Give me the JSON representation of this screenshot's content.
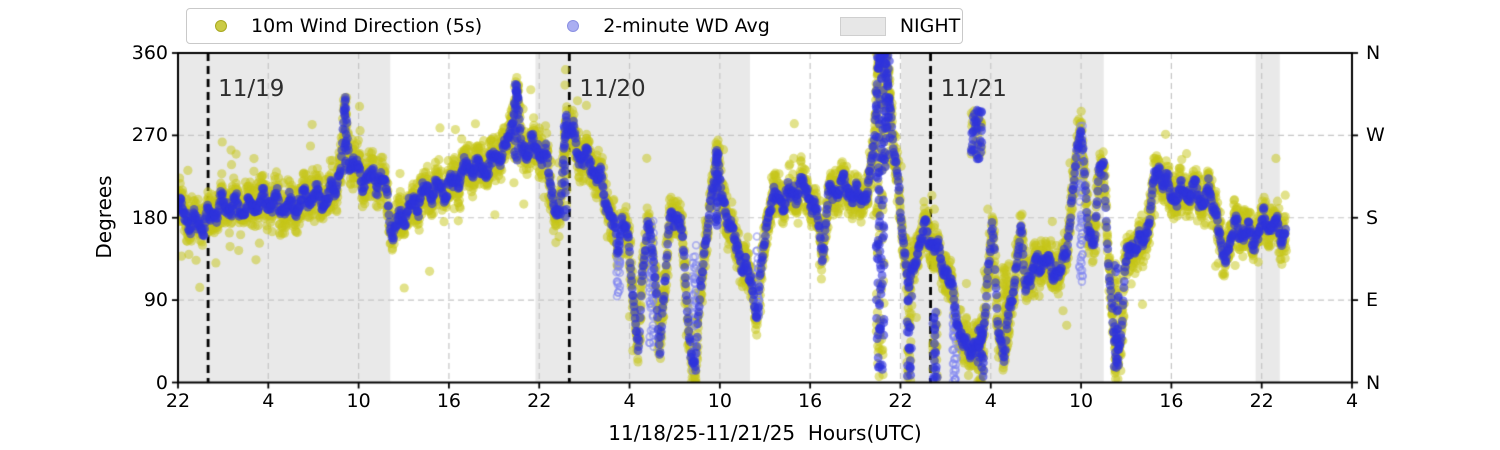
{
  "figure_title": "",
  "legend": {
    "items": [
      {
        "label": "10m Wind Direction (5s)",
        "marker": "dot",
        "fill": "#cbcb45",
        "edge": "#a8a820"
      },
      {
        "label": "2-minute WD Avg",
        "marker": "dot",
        "fill": "#aaaef2",
        "edge": "#8b90e2"
      },
      {
        "label": "NIGHT",
        "marker": "patch",
        "fill": "#e7e7e7",
        "edge": "#cfcfcf"
      }
    ]
  },
  "chart_data": {
    "type": "scatter",
    "title": "",
    "xlabel": "11/18/25-11/21/25  Hours(UTC)",
    "ylabel": "Degrees",
    "ylim": [
      0,
      360
    ],
    "grid": true,
    "legend_position": "top",
    "x_axis": {
      "unit": "hours UTC, 0 = 22:00 on 11/18/25",
      "range_hours": [
        0,
        78
      ],
      "tick_hours": [
        0,
        6,
        12,
        18,
        24,
        30,
        36,
        42,
        48,
        54,
        60,
        66,
        72,
        78
      ],
      "tick_labels": [
        "22",
        "4",
        "10",
        "16",
        "22",
        "4",
        "10",
        "16",
        "22",
        "4",
        "10",
        "16",
        "22",
        "4"
      ]
    },
    "y_axis": {
      "ticks": [
        0,
        90,
        180,
        270,
        360
      ]
    },
    "y_axis_right": {
      "labels_bottom_to_top": [
        "N",
        "E",
        "S",
        "W",
        "N"
      ]
    },
    "night_regions_hours": [
      [
        0,
        14.1
      ],
      [
        23.75,
        38.0
      ],
      [
        48.05,
        61.5
      ],
      [
        71.6,
        73.2
      ]
    ],
    "night_fill": "#e9e9e9",
    "grid_color": "#c6c6c6",
    "day_lines": [
      {
        "hour": 2,
        "label": "11/19"
      },
      {
        "hour": 26,
        "label": "11/20"
      },
      {
        "hour": 50,
        "label": "11/21"
      }
    ],
    "series": [
      {
        "name": "10m Wind Direction (5s)",
        "kind": "5s",
        "dot_color": "#c5c518",
        "alpha": 0.5,
        "step_hours": 0.012,
        "radius": 4.6
      },
      {
        "name": "2-minute WD Avg",
        "kind": "avg",
        "dot_color": "#2f34dc",
        "alpha": 0.6,
        "step_hours": 0.0333,
        "radius": 4.4,
        "light_edge_color": "#8085f0"
      }
    ],
    "data_start_hour": 0,
    "data_end_hour": 73.6,
    "jitter": {
      "wd_5s_spread_deg": 34,
      "wd_avg_spread_deg": 10,
      "outlier_rate": 0.018,
      "seed": 20251118
    },
    "wind_direction_profile_hour_deg": [
      [
        0,
        185
      ],
      [
        0.8,
        175
      ],
      [
        2.2,
        182
      ],
      [
        3.2,
        190
      ],
      [
        4.5,
        196
      ],
      [
        5.5,
        192
      ],
      [
        6.6,
        198
      ],
      [
        7.5,
        193
      ],
      [
        8.1,
        192
      ],
      [
        8.8,
        200
      ],
      [
        9.5,
        204
      ],
      [
        10.1,
        206
      ],
      [
        10.8,
        228
      ],
      [
        11.1,
        295
      ],
      [
        11.4,
        240
      ],
      [
        12.0,
        230
      ],
      [
        12.4,
        228
      ],
      [
        13.0,
        226
      ],
      [
        13.6,
        218
      ],
      [
        14.0,
        185
      ],
      [
        14.3,
        155
      ],
      [
        14.8,
        185
      ],
      [
        15.5,
        196
      ],
      [
        16.1,
        200
      ],
      [
        17.0,
        206
      ],
      [
        17.4,
        210
      ],
      [
        18.0,
        218
      ],
      [
        18.7,
        226
      ],
      [
        19.3,
        230
      ],
      [
        19.9,
        232
      ],
      [
        20.6,
        240
      ],
      [
        21.3,
        252
      ],
      [
        21.8,
        250
      ],
      [
        22.2,
        282
      ],
      [
        22.5,
        315
      ],
      [
        22.8,
        258
      ],
      [
        23.2,
        260
      ],
      [
        23.6,
        263
      ],
      [
        24.0,
        255
      ],
      [
        24.5,
        238
      ],
      [
        25.0,
        188
      ],
      [
        25.4,
        172
      ],
      [
        25.6,
        255
      ],
      [
        25.8,
        290
      ],
      [
        26.3,
        270
      ],
      [
        26.8,
        248
      ],
      [
        27.4,
        235
      ],
      [
        28.2,
        212
      ],
      [
        28.7,
        190
      ],
      [
        29.2,
        150
      ],
      [
        29.5,
        182
      ],
      [
        29.8,
        160
      ],
      [
        30.2,
        105
      ],
      [
        30.45,
        52
      ],
      [
        30.6,
        32
      ],
      [
        30.9,
        120
      ],
      [
        31.2,
        188
      ],
      [
        31.5,
        150
      ],
      [
        31.8,
        90
      ],
      [
        32.0,
        47
      ],
      [
        32.4,
        120
      ],
      [
        32.8,
        183
      ],
      [
        33.4,
        168
      ],
      [
        33.8,
        100
      ],
      [
        34.1,
        28
      ],
      [
        34.4,
        15
      ],
      [
        34.7,
        118
      ],
      [
        35.2,
        162
      ],
      [
        35.8,
        252
      ],
      [
        36.1,
        195
      ],
      [
        36.7,
        180
      ],
      [
        37.1,
        150
      ],
      [
        37.7,
        130
      ],
      [
        38.1,
        100
      ],
      [
        38.5,
        75
      ],
      [
        38.9,
        140
      ],
      [
        39.3,
        198
      ],
      [
        39.9,
        205
      ],
      [
        40.7,
        200
      ],
      [
        41.3,
        210
      ],
      [
        42.0,
        206
      ],
      [
        42.6,
        178
      ],
      [
        42.8,
        140
      ],
      [
        43.0,
        178
      ],
      [
        43.3,
        205
      ],
      [
        44.3,
        210
      ],
      [
        45.3,
        206
      ],
      [
        46.0,
        216
      ],
      [
        46.3,
        278
      ],
      [
        46.5,
        345
      ],
      [
        46.8,
        355
      ],
      [
        47.1,
        340
      ],
      [
        47.35,
        300
      ],
      [
        47.6,
        250
      ],
      [
        47.85,
        215
      ],
      [
        48.1,
        178
      ],
      [
        48.35,
        140
      ],
      [
        48.6,
        100
      ],
      [
        48.9,
        128
      ],
      [
        49.2,
        148
      ],
      [
        49.6,
        160
      ],
      [
        50.2,
        154
      ],
      [
        50.6,
        140
      ],
      [
        51.1,
        124
      ],
      [
        51.5,
        92
      ],
      [
        51.9,
        55
      ],
      [
        52.3,
        30
      ],
      [
        52.8,
        42
      ],
      [
        53.3,
        35
      ],
      [
        53.8,
        120
      ],
      [
        54.1,
        168
      ],
      [
        54.5,
        62
      ],
      [
        54.9,
        15
      ],
      [
        55.3,
        90
      ],
      [
        55.7,
        122
      ],
      [
        56.0,
        172
      ],
      [
        56.3,
        120
      ],
      [
        56.65,
        110
      ],
      [
        57.1,
        136
      ],
      [
        57.5,
        120
      ],
      [
        58.0,
        128
      ],
      [
        58.5,
        114
      ],
      [
        58.9,
        148
      ],
      [
        59.3,
        180
      ],
      [
        59.8,
        262
      ],
      [
        60.0,
        283
      ],
      [
        60.25,
        208
      ],
      [
        60.5,
        152
      ],
      [
        60.9,
        162
      ],
      [
        61.2,
        225
      ],
      [
        61.5,
        243
      ],
      [
        61.8,
        150
      ],
      [
        62.1,
        62
      ],
      [
        62.35,
        20
      ],
      [
        62.6,
        46
      ],
      [
        62.9,
        110
      ],
      [
        63.2,
        140
      ],
      [
        63.6,
        150
      ],
      [
        64.1,
        156
      ],
      [
        64.5,
        186
      ],
      [
        64.8,
        210
      ],
      [
        65.1,
        238
      ],
      [
        65.6,
        212
      ],
      [
        66.0,
        200
      ],
      [
        66.6,
        206
      ],
      [
        67.1,
        216
      ],
      [
        67.6,
        210
      ],
      [
        68.1,
        196
      ],
      [
        68.6,
        200
      ],
      [
        69.0,
        186
      ],
      [
        69.4,
        132
      ],
      [
        69.9,
        165
      ],
      [
        70.4,
        172
      ],
      [
        70.9,
        160
      ],
      [
        71.4,
        150
      ],
      [
        71.8,
        165
      ],
      [
        72.2,
        180
      ],
      [
        72.7,
        176
      ],
      [
        73.1,
        170
      ],
      [
        73.6,
        160
      ]
    ],
    "vertical_streaks": [
      {
        "hour": 11.1,
        "width": 0.15,
        "deg_min": 230,
        "deg_max": 310,
        "series": "both",
        "n": 30
      },
      {
        "hour": 22.5,
        "width": 0.3,
        "deg_min": 240,
        "deg_max": 330,
        "series": "both",
        "n": 45
      },
      {
        "hour": 25.75,
        "width": 0.2,
        "deg_min": 180,
        "deg_max": 295,
        "series": "both",
        "n": 30
      },
      {
        "hour": 29.25,
        "width": 0.25,
        "deg_min": 90,
        "deg_max": 178,
        "series": "avg-light",
        "n": 40
      },
      {
        "hour": 31.45,
        "width": 0.3,
        "deg_min": 35,
        "deg_max": 178,
        "series": "avg-light",
        "n": 50
      },
      {
        "hour": 34.3,
        "width": 0.25,
        "deg_min": 10,
        "deg_max": 150,
        "series": "avg-light",
        "n": 40
      },
      {
        "hour": 35.8,
        "width": 0.15,
        "deg_min": 170,
        "deg_max": 256,
        "series": "avg",
        "n": 25
      },
      {
        "hour": 38.5,
        "width": 0.2,
        "deg_min": 60,
        "deg_max": 160,
        "series": "avg-light",
        "n": 30
      },
      {
        "hour": 46.65,
        "width": 0.55,
        "deg_min": 0,
        "deg_max": 360,
        "series": "both",
        "n": 170
      },
      {
        "hour": 47.1,
        "width": 0.4,
        "deg_min": 235,
        "deg_max": 360,
        "series": "both",
        "n": 70
      },
      {
        "hour": 48.6,
        "width": 0.35,
        "deg_min": 0,
        "deg_max": 95,
        "series": "both",
        "n": 45
      },
      {
        "hour": 50.3,
        "width": 0.3,
        "deg_min": 0,
        "deg_max": 80,
        "series": "both",
        "n": 40
      },
      {
        "hour": 51.6,
        "width": 0.3,
        "deg_min": 0,
        "deg_max": 85,
        "series": "avg-light",
        "n": 40
      },
      {
        "hour": 53.05,
        "width": 0.7,
        "deg_min": 243,
        "deg_max": 298,
        "series": "both",
        "n": 70
      },
      {
        "hour": 53.35,
        "width": 0.4,
        "deg_min": 0,
        "deg_max": 60,
        "series": "both",
        "n": 40
      },
      {
        "hour": 55.0,
        "width": 0.5,
        "deg_min": 40,
        "deg_max": 130,
        "series": "5s",
        "n": 60
      },
      {
        "hour": 60.0,
        "width": 0.25,
        "deg_min": 105,
        "deg_max": 285,
        "series": "avg-light",
        "n": 45
      },
      {
        "hour": 62.35,
        "width": 0.3,
        "deg_min": 0,
        "deg_max": 130,
        "series": "both",
        "n": 40
      }
    ]
  }
}
